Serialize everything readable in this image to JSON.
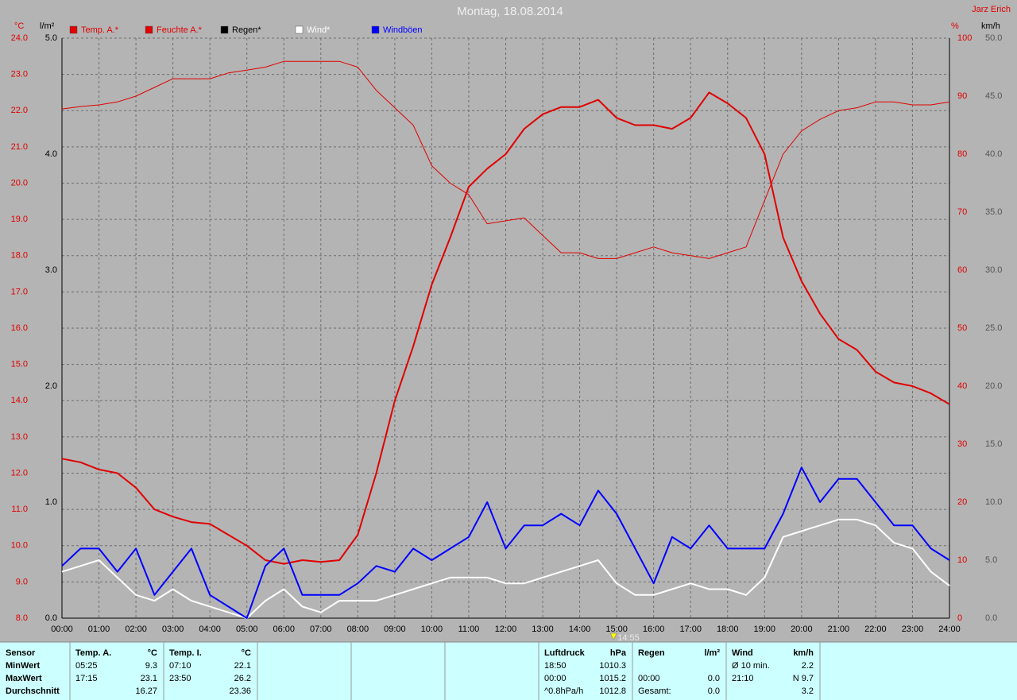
{
  "chart_data": {
    "type": "line",
    "title": "Montag, 18.08.2014",
    "author": "Jarz Erich",
    "y_unit": "°C",
    "y3_unit": "l/m²",
    "y2_unit": "%",
    "y4_unit": "km/h",
    "x": [
      0,
      0.5,
      1,
      1.5,
      2,
      2.5,
      3,
      3.5,
      4,
      4.5,
      5,
      5.5,
      6,
      6.5,
      7,
      7.5,
      8,
      8.5,
      9,
      9.5,
      10,
      10.5,
      11,
      11.5,
      12,
      12.5,
      13,
      13.5,
      14,
      14.5,
      15,
      15.5,
      16,
      16.5,
      17,
      17.5,
      18,
      18.5,
      19,
      19.5,
      20,
      20.5,
      21,
      21.5,
      22,
      22.5,
      23,
      23.5,
      24
    ],
    "xlim": [
      0,
      24
    ],
    "xticks": [
      {
        "value": 0,
        "label": "00:00"
      },
      {
        "value": 1,
        "label": "01:00"
      },
      {
        "value": 2,
        "label": "02:00"
      },
      {
        "value": 3,
        "label": "03:00"
      },
      {
        "value": 4,
        "label": "04:00"
      },
      {
        "value": 5,
        "label": "05:00"
      },
      {
        "value": 6,
        "label": "06:00"
      },
      {
        "value": 7,
        "label": "07:00"
      },
      {
        "value": 8,
        "label": "08:00"
      },
      {
        "value": 9,
        "label": "09:00"
      },
      {
        "value": 10,
        "label": "10:00"
      },
      {
        "value": 11,
        "label": "11:00"
      },
      {
        "value": 12,
        "label": "12:00"
      },
      {
        "value": 13,
        "label": "13:00"
      },
      {
        "value": 14,
        "label": "14:00"
      },
      {
        "value": 15,
        "label": "15:00"
      },
      {
        "value": 16,
        "label": "16:00"
      },
      {
        "value": 17,
        "label": "17:00"
      },
      {
        "value": 18,
        "label": "18:00"
      },
      {
        "value": 19,
        "label": "19:00"
      },
      {
        "value": 20,
        "label": "20:00"
      },
      {
        "value": 21,
        "label": "21:00"
      },
      {
        "value": 22,
        "label": "22:00"
      },
      {
        "value": 23,
        "label": "23:00"
      },
      {
        "value": 24,
        "label": "24:00"
      }
    ],
    "ylim": [
      8,
      24
    ],
    "yticks": [
      {
        "value": 8,
        "label": "8.0"
      },
      {
        "value": 9,
        "label": "9.0"
      },
      {
        "value": 10,
        "label": "10.0"
      },
      {
        "value": 11,
        "label": "11.0"
      },
      {
        "value": 12,
        "label": "12.0"
      },
      {
        "value": 13,
        "label": "13.0"
      },
      {
        "value": 14,
        "label": "14.0"
      },
      {
        "value": 15,
        "label": "15.0"
      },
      {
        "value": 16,
        "label": "16.0"
      },
      {
        "value": 17,
        "label": "17.0"
      },
      {
        "value": 18,
        "label": "18.0"
      },
      {
        "value": 19,
        "label": "19.0"
      },
      {
        "value": 20,
        "label": "20.0"
      },
      {
        "value": 21,
        "label": "21.0"
      },
      {
        "value": 22,
        "label": "22.0"
      },
      {
        "value": 23,
        "label": "23.0"
      },
      {
        "value": 24,
        "label": "24.0"
      }
    ],
    "y3lim": [
      0,
      5
    ],
    "y3ticks": [
      {
        "value": 0,
        "label": "0.0"
      },
      {
        "value": 1,
        "label": "1.0"
      },
      {
        "value": 2,
        "label": "2.0"
      },
      {
        "value": 3,
        "label": "3.0"
      },
      {
        "value": 4,
        "label": "4.0"
      },
      {
        "value": 5,
        "label": "5.0"
      }
    ],
    "y2lim": [
      0,
      100
    ],
    "y2ticks": [
      0,
      10,
      20,
      30,
      40,
      50,
      60,
      70,
      80,
      90,
      100
    ],
    "y4lim": [
      0,
      50
    ],
    "y4ticks": [
      {
        "value": 0,
        "label": "0.0"
      },
      {
        "value": 5,
        "label": "5.0"
      },
      {
        "value": 10,
        "label": "10.0"
      },
      {
        "value": 15,
        "label": "15.0"
      },
      {
        "value": 20,
        "label": "20.0"
      },
      {
        "value": 25,
        "label": "25.0"
      },
      {
        "value": 30,
        "label": "30.0"
      },
      {
        "value": 35,
        "label": "35.0"
      },
      {
        "value": 40,
        "label": "40.0"
      },
      {
        "value": 45,
        "label": "45.0"
      },
      {
        "value": 50,
        "label": "50.0"
      }
    ],
    "grid": true,
    "marker": {
      "x": 14.9167,
      "label": "14:55"
    },
    "series": [
      {
        "name": "Temp. A.*",
        "color": "#e00000",
        "axis": "y",
        "width": 2,
        "values": [
          12.4,
          12.3,
          12.1,
          12.0,
          11.6,
          11.0,
          10.8,
          10.65,
          10.6,
          10.3,
          10.0,
          9.6,
          9.5,
          9.6,
          9.55,
          9.6,
          10.3,
          12.0,
          14.0,
          15.5,
          17.2,
          18.5,
          19.9,
          20.4,
          20.8,
          21.5,
          21.9,
          22.1,
          22.1,
          22.3,
          21.8,
          21.6,
          21.6,
          21.5,
          21.8,
          22.5,
          22.2,
          21.8,
          20.8,
          18.5,
          17.3,
          16.4,
          15.7,
          15.4,
          14.8,
          14.5,
          14.4,
          14.2,
          13.9
        ]
      },
      {
        "name": "Feuchte A.*",
        "color": "#e00000",
        "axis": "y2",
        "width": 1,
        "values": [
          87.8,
          88.2,
          88.5,
          89,
          90,
          91.5,
          93,
          93,
          93,
          94,
          94.5,
          95,
          96,
          96,
          96,
          96,
          95,
          91,
          88,
          85,
          78,
          75,
          73,
          68,
          68.5,
          69,
          66,
          63,
          63,
          62,
          62,
          63,
          64,
          63,
          62.5,
          62,
          63,
          64,
          72,
          80,
          84,
          86,
          87.5,
          88,
          89,
          89,
          88.5,
          88.5,
          89
        ]
      },
      {
        "name": "Regen*",
        "color": "#000000",
        "axis": "y3",
        "width": 1,
        "values": [
          0,
          0,
          0,
          0,
          0,
          0,
          0,
          0,
          0,
          0,
          0,
          0,
          0,
          0,
          0,
          0,
          0,
          0,
          0,
          0,
          0,
          0,
          0,
          0,
          0,
          0,
          0,
          0,
          0,
          0,
          0,
          0,
          0,
          0,
          0,
          0,
          0,
          0,
          0,
          0,
          0,
          0,
          0,
          0,
          0,
          0,
          0,
          0,
          0
        ]
      },
      {
        "name": "Wind*",
        "color": "#ffffff",
        "axis": "y4",
        "width": 2,
        "values": [
          4,
          4.5,
          5,
          3.5,
          2,
          1.5,
          2.5,
          1.5,
          1,
          0.5,
          0,
          1.5,
          2.5,
          1,
          0.5,
          1.5,
          1.5,
          1.5,
          2,
          2.5,
          3,
          3.5,
          3.5,
          3.5,
          3,
          3,
          3.5,
          4,
          4.5,
          5,
          3,
          2,
          2,
          2.5,
          3,
          2.5,
          2.5,
          2,
          3.5,
          7,
          7.5,
          8,
          8.5,
          8.5,
          8,
          6.5,
          6,
          4,
          2.8
        ]
      },
      {
        "name": "Windböen",
        "color": "#0000ff",
        "axis": "y4",
        "width": 2,
        "values": [
          4.5,
          6,
          6,
          4,
          6,
          2,
          4,
          6,
          2,
          1,
          0,
          4.5,
          6,
          2,
          2,
          2,
          3,
          4.5,
          4,
          6,
          5,
          6,
          7,
          10,
          6,
          8,
          8,
          9,
          8,
          11,
          9,
          6,
          3,
          7,
          6,
          8,
          6,
          6,
          6,
          9,
          13,
          10,
          12,
          12,
          10,
          8,
          8,
          6,
          5
        ]
      }
    ]
  },
  "table": {
    "blocks": [
      {
        "header": [
          "Sensor"
        ],
        "rows": [
          [
            "MinWert"
          ],
          [
            "MaxWert"
          ],
          [
            "Durchschnitt"
          ]
        ]
      },
      {
        "header": [
          "Temp. A.",
          "°C"
        ],
        "rows": [
          [
            "05:25",
            "9.3"
          ],
          [
            "17:15",
            "23.1"
          ],
          [
            null,
            "16.27"
          ]
        ]
      },
      {
        "header": [
          "Temp. I.",
          "°C"
        ],
        "rows": [
          [
            "07:10",
            "22.1"
          ],
          [
            "23:50",
            "26.2"
          ],
          [
            null,
            "23.36"
          ]
        ]
      },
      {
        "header": [
          "Luftdruck",
          "hPa"
        ],
        "rows": [
          [
            "18:50",
            "1010.3"
          ],
          [
            "00:00",
            "1015.2"
          ],
          [
            "^0.8hPa/h",
            "1012.8"
          ]
        ]
      },
      {
        "header": [
          "Regen",
          "l/m²"
        ],
        "rows": [
          [
            null,
            null
          ],
          [
            "00:00",
            "0.0"
          ],
          [
            "Gesamt:",
            "0.0"
          ]
        ]
      },
      {
        "header": [
          "Wind",
          "km/h"
        ],
        "rows": [
          [
            "Ø 10 min.",
            "2.2"
          ],
          [
            "21:10",
            "N 9.7"
          ],
          [
            null,
            "3.2"
          ]
        ]
      }
    ]
  }
}
